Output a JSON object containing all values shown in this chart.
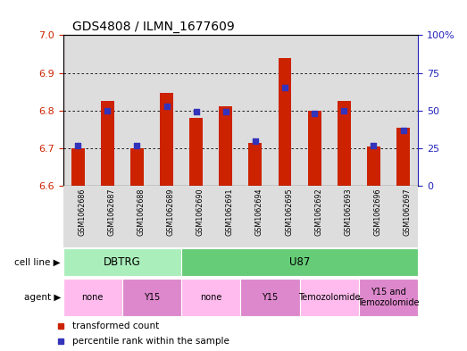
{
  "title": "GDS4808 / ILMN_1677609",
  "samples": [
    "GSM1062686",
    "GSM1062687",
    "GSM1062688",
    "GSM1062689",
    "GSM1062690",
    "GSM1062691",
    "GSM1062694",
    "GSM1062695",
    "GSM1062692",
    "GSM1062693",
    "GSM1062696",
    "GSM1062697"
  ],
  "transformed_count": [
    6.7,
    6.825,
    6.7,
    6.848,
    6.78,
    6.812,
    6.715,
    6.94,
    6.8,
    6.825,
    6.705,
    6.755
  ],
  "percentile_rank": [
    27,
    50,
    27,
    53,
    49,
    49,
    30,
    65,
    48,
    50,
    27,
    37
  ],
  "ylim_left": [
    6.6,
    7.0
  ],
  "ylim_right": [
    0,
    100
  ],
  "yticks_left": [
    6.6,
    6.7,
    6.8,
    6.9,
    7.0
  ],
  "yticks_right": [
    0,
    25,
    50,
    75,
    100
  ],
  "bar_color": "#cc2200",
  "dot_color": "#3333bb",
  "bar_base": 6.6,
  "cell_line_groups": [
    {
      "name": "DBTRG",
      "start": 0,
      "end": 4,
      "color": "#aaeebb"
    },
    {
      "name": "U87",
      "start": 4,
      "end": 12,
      "color": "#66cc77"
    }
  ],
  "agent_groups": [
    {
      "name": "none",
      "start": 0,
      "end": 2,
      "color": "#ffbbee"
    },
    {
      "name": "Y15",
      "start": 2,
      "end": 4,
      "color": "#dd88cc"
    },
    {
      "name": "none",
      "start": 4,
      "end": 6,
      "color": "#ffbbee"
    },
    {
      "name": "Y15",
      "start": 6,
      "end": 8,
      "color": "#dd88cc"
    },
    {
      "name": "Temozolomide",
      "start": 8,
      "end": 10,
      "color": "#ffbbee"
    },
    {
      "name": "Y15 and\nTemozolomide",
      "start": 10,
      "end": 12,
      "color": "#dd88cc"
    }
  ],
  "left_tick_color": "#cc2200",
  "right_tick_color": "#2222bb",
  "col_bg_color": "#dddddd"
}
